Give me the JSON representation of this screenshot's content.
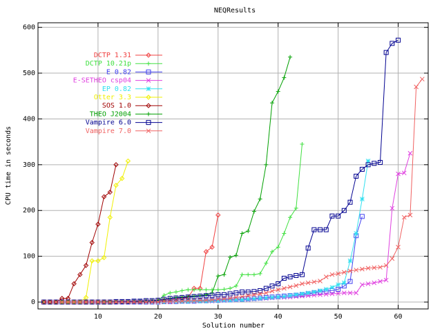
{
  "chart_data": {
    "type": "line",
    "title": "NEQResults",
    "x_label": "Solution number",
    "y_label": "CPU time in seconds",
    "xlim": [
      0,
      65
    ],
    "ylim": [
      -15,
      610
    ],
    "xticks": [
      10,
      20,
      30,
      40,
      50,
      60
    ],
    "yticks": [
      0,
      100,
      200,
      300,
      400,
      500,
      600
    ],
    "grid": true,
    "legend": "top left",
    "series": [
      {
        "name": "DCTP 1.31",
        "color": "#f04040",
        "marker": "diamond",
        "x": [
          1,
          2,
          3,
          4,
          5,
          6,
          7,
          8,
          9,
          10,
          11,
          12,
          13,
          14,
          15,
          16,
          17,
          18,
          19,
          20,
          21,
          22,
          23,
          24,
          25,
          26,
          27,
          28,
          29,
          30
        ],
        "values": [
          0,
          0,
          0,
          0,
          0,
          0,
          0,
          0,
          0,
          0,
          0,
          0,
          0,
          0,
          1,
          1,
          1,
          2,
          2,
          3,
          4,
          5,
          6,
          8,
          10,
          30,
          30,
          110,
          120,
          190
        ]
      },
      {
        "name": "DCTP 10.21p",
        "color": "#40e040",
        "marker": "plus",
        "x": [
          1,
          2,
          3,
          4,
          5,
          6,
          7,
          8,
          9,
          10,
          11,
          12,
          13,
          14,
          15,
          16,
          17,
          18,
          19,
          20,
          21,
          22,
          23,
          24,
          25,
          26,
          27,
          28,
          29,
          30,
          31,
          32,
          33,
          34,
          35,
          36,
          37,
          38,
          39,
          40,
          41,
          42,
          43,
          44
        ],
        "values": [
          0,
          0,
          0,
          0,
          0,
          0,
          0,
          0,
          0,
          0,
          0,
          0,
          0,
          0,
          1,
          1,
          1,
          2,
          2,
          3,
          15,
          20,
          22,
          25,
          27,
          27,
          27,
          27,
          27,
          27,
          28,
          30,
          35,
          60,
          60,
          60,
          62,
          85,
          110,
          120,
          150,
          185,
          205,
          345
        ]
      },
      {
        "name": "E 0.82",
        "color": "#4040f0",
        "marker": "square",
        "x": [
          1,
          2,
          3,
          4,
          5,
          6,
          7,
          8,
          9,
          10,
          11,
          12,
          13,
          14,
          15,
          16,
          17,
          18,
          19,
          20,
          21,
          22,
          23,
          24,
          25,
          26,
          27,
          28,
          29,
          30,
          31,
          32,
          33,
          34,
          35,
          36,
          37,
          38,
          39,
          40,
          41,
          42,
          43,
          44,
          45,
          46,
          47,
          48,
          49,
          50,
          51,
          52,
          53,
          54
        ],
        "values": [
          0,
          0,
          0,
          0,
          0,
          0,
          0,
          0,
          0,
          0,
          0,
          0,
          0,
          0,
          0,
          0,
          0,
          0,
          0,
          0,
          1,
          1,
          1,
          2,
          2,
          2,
          3,
          3,
          4,
          4,
          5,
          5,
          6,
          6,
          7,
          8,
          9,
          10,
          11,
          12,
          13,
          14,
          15,
          16,
          18,
          20,
          22,
          24,
          25,
          28,
          35,
          45,
          145,
          187
        ]
      },
      {
        "name": "E-SETHEO csp04",
        "color": "#e040e0",
        "marker": "cross",
        "x": [
          1,
          2,
          3,
          4,
          5,
          6,
          7,
          8,
          9,
          10,
          11,
          12,
          13,
          14,
          15,
          16,
          17,
          18,
          19,
          20,
          21,
          22,
          23,
          24,
          25,
          26,
          27,
          28,
          29,
          30,
          31,
          32,
          33,
          34,
          35,
          36,
          37,
          38,
          39,
          40,
          41,
          42,
          43,
          44,
          45,
          46,
          47,
          48,
          49,
          50,
          51,
          52,
          53,
          54,
          55,
          56,
          57,
          58,
          59,
          60,
          61,
          62
        ],
        "values": [
          0,
          0,
          0,
          0,
          0,
          0,
          0,
          0,
          0,
          0,
          0,
          0,
          0,
          0,
          0,
          0,
          0,
          0,
          0,
          0,
          0,
          0,
          1,
          1,
          1,
          1,
          2,
          2,
          2,
          3,
          3,
          4,
          4,
          5,
          5,
          6,
          7,
          8,
          9,
          10,
          10,
          11,
          12,
          13,
          14,
          15,
          16,
          17,
          18,
          19,
          20,
          20,
          20,
          38,
          40,
          42,
          45,
          48,
          205,
          280,
          282,
          325
        ]
      },
      {
        "name": "EP 0.82",
        "color": "#30e0f0",
        "marker": "star",
        "x": [
          1,
          2,
          3,
          4,
          5,
          6,
          7,
          8,
          9,
          10,
          11,
          12,
          13,
          14,
          15,
          16,
          17,
          18,
          19,
          20,
          21,
          22,
          23,
          24,
          25,
          26,
          27,
          28,
          29,
          30,
          31,
          32,
          33,
          34,
          35,
          36,
          37,
          38,
          39,
          40,
          41,
          42,
          43,
          44,
          45,
          46,
          47,
          48,
          49,
          50,
          51,
          52,
          53,
          54,
          55
        ],
        "values": [
          0,
          0,
          0,
          0,
          0,
          0,
          0,
          0,
          0,
          0,
          0,
          0,
          0,
          0,
          0,
          0,
          0,
          0,
          0,
          0,
          0,
          1,
          1,
          1,
          1,
          2,
          2,
          2,
          3,
          3,
          4,
          4,
          5,
          5,
          6,
          7,
          8,
          9,
          10,
          11,
          12,
          14,
          16,
          18,
          20,
          22,
          25,
          28,
          32,
          38,
          42,
          90,
          150,
          225,
          308
        ]
      },
      {
        "name": "Otter 3.3",
        "color": "#f0f000",
        "marker": "diamond",
        "x": [
          1,
          2,
          3,
          4,
          5,
          6,
          7,
          8,
          9,
          10,
          11,
          12,
          13,
          14,
          15
        ],
        "values": [
          0,
          0,
          0,
          0,
          0,
          0,
          0,
          10,
          90,
          90,
          97,
          185,
          255,
          270,
          308
        ]
      },
      {
        "name": "SOS 1.0",
        "color": "#a00000",
        "marker": "diamond",
        "x": [
          1,
          2,
          3,
          4,
          5,
          6,
          7,
          8,
          9,
          10,
          11,
          12,
          13
        ],
        "values": [
          0,
          0,
          0,
          8,
          8,
          40,
          60,
          80,
          130,
          170,
          230,
          240,
          300
        ]
      },
      {
        "name": "THEO J2004",
        "color": "#00a000",
        "marker": "plus",
        "x": [
          1,
          2,
          3,
          4,
          5,
          6,
          7,
          8,
          9,
          10,
          11,
          12,
          13,
          14,
          15,
          16,
          17,
          18,
          19,
          20,
          21,
          22,
          23,
          24,
          25,
          26,
          27,
          28,
          29,
          30,
          31,
          32,
          33,
          34,
          35,
          36,
          37,
          38,
          39,
          40,
          41,
          42
        ],
        "values": [
          0,
          0,
          0,
          0,
          0,
          0,
          0,
          0,
          0,
          0,
          1,
          1,
          1,
          1,
          1,
          2,
          2,
          3,
          3,
          4,
          6,
          8,
          10,
          11,
          12,
          13,
          14,
          16,
          20,
          57,
          60,
          98,
          102,
          150,
          155,
          198,
          225,
          300,
          435,
          460,
          490,
          535
        ]
      },
      {
        "name": "Vampire 6.0",
        "color": "#000090",
        "marker": "square",
        "x": [
          1,
          2,
          3,
          4,
          5,
          6,
          7,
          8,
          9,
          10,
          11,
          12,
          13,
          14,
          15,
          16,
          17,
          18,
          19,
          20,
          21,
          22,
          23,
          24,
          25,
          26,
          27,
          28,
          29,
          30,
          31,
          32,
          33,
          34,
          35,
          36,
          37,
          38,
          39,
          40,
          41,
          42,
          43,
          44,
          45,
          46,
          47,
          48,
          49,
          50,
          51,
          52,
          53,
          54,
          55,
          56,
          57,
          58,
          59,
          60
        ],
        "values": [
          0,
          0,
          0,
          0,
          0,
          0,
          0,
          0,
          0,
          0,
          0,
          0,
          1,
          1,
          1,
          2,
          2,
          3,
          3,
          4,
          6,
          8,
          9,
          10,
          11,
          12,
          13,
          14,
          15,
          16,
          16,
          18,
          20,
          22,
          22,
          23,
          25,
          30,
          35,
          40,
          52,
          55,
          58,
          60,
          118,
          158,
          158,
          158,
          188,
          188,
          200,
          218,
          275,
          290,
          300,
          303,
          305,
          545,
          565,
          572
        ]
      },
      {
        "name": "Vampire 7.0",
        "color": "#f06060",
        "marker": "cross",
        "x": [
          1,
          2,
          3,
          4,
          5,
          6,
          7,
          8,
          9,
          10,
          11,
          12,
          13,
          14,
          15,
          16,
          17,
          18,
          19,
          20,
          21,
          22,
          23,
          24,
          25,
          26,
          27,
          28,
          29,
          30,
          31,
          32,
          33,
          34,
          35,
          36,
          37,
          38,
          39,
          40,
          41,
          42,
          43,
          44,
          45,
          46,
          47,
          48,
          49,
          50,
          51,
          52,
          53,
          54,
          55,
          56,
          57,
          58,
          59,
          60,
          61,
          62,
          63,
          64
        ],
        "values": [
          0,
          0,
          0,
          0,
          0,
          0,
          0,
          0,
          0,
          0,
          0,
          0,
          0,
          0,
          0,
          0,
          0,
          0,
          0,
          0,
          1,
          1,
          2,
          2,
          3,
          3,
          4,
          4,
          5,
          6,
          7,
          8,
          10,
          12,
          14,
          16,
          18,
          20,
          24,
          27,
          30,
          33,
          36,
          40,
          42,
          44,
          46,
          55,
          60,
          62,
          65,
          68,
          70,
          72,
          74,
          75,
          76,
          80,
          95,
          120,
          185,
          190,
          470,
          487
        ]
      }
    ]
  }
}
